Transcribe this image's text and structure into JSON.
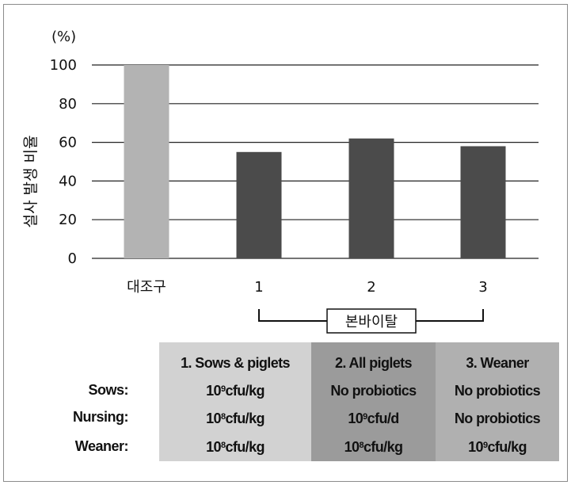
{
  "chart_data": {
    "type": "bar",
    "unit_label": "(%)",
    "ylabel": "설사 발생 비율",
    "categories": [
      "대조구",
      "1",
      "2",
      "3"
    ],
    "values": [
      100,
      55,
      62,
      58
    ],
    "ylim": [
      0,
      100
    ],
    "yticks": [
      0,
      20,
      40,
      60,
      80,
      100
    ],
    "grid": true,
    "bracket_label": "본바이탈",
    "bracket_spans": [
      "1",
      "3"
    ],
    "colors": {
      "control": "#b3b3b3",
      "treatment": "#4b4b4b",
      "grid": "#222222"
    }
  },
  "table": {
    "headers": [
      "1. Sows & piglets",
      "2. All piglets",
      "3. Weaner"
    ],
    "rows": [
      {
        "label": "Sows:",
        "cells": [
          {
            "base": "10",
            "exp": "9",
            "unit": " cfu/kg"
          },
          {
            "text": "No probiotics"
          },
          {
            "text": "No probiotics"
          }
        ]
      },
      {
        "label": "Nursing:",
        "cells": [
          {
            "base": "10",
            "exp": "8",
            "unit": " cfu/kg"
          },
          {
            "base": "10",
            "exp": "9",
            "unit": " cfu/d"
          },
          {
            "text": "No probiotics"
          }
        ]
      },
      {
        "label": "Weaner:",
        "cells": [
          {
            "base": "10",
            "exp": "8",
            "unit": " cfu/kg"
          },
          {
            "base": "10",
            "exp": "8",
            "unit": " cfu/kg"
          },
          {
            "base": "10",
            "exp": "9",
            "unit": " cfu/kg"
          }
        ]
      }
    ],
    "column_colors": [
      "#d2d2d2",
      "#9b9b9b",
      "#b0b0b0"
    ]
  }
}
